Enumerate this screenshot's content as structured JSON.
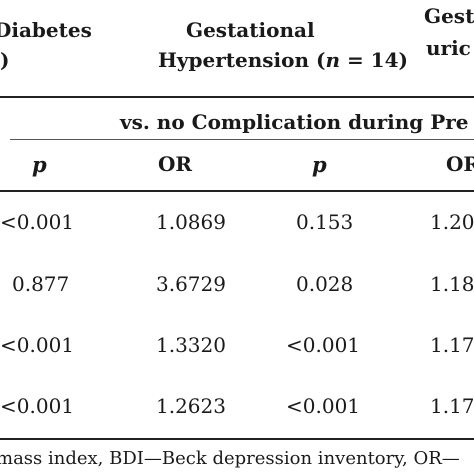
{
  "header": {
    "col1_line1": "Diabetes",
    "col1_line2": ")",
    "col2_line1": "Gestational",
    "col2_line2_prefix": "Hypertension (",
    "col2_line2_n": "n",
    "col2_line2_suffix": " = 14)",
    "col3_line1": "Gest",
    "col3_line2": "uric"
  },
  "comparison_label": "vs. no Complication during Pre",
  "subheaders": {
    "p1": "p",
    "or": "OR",
    "p2": "p",
    "or2": "OR"
  },
  "rows": [
    {
      "p1": "<0.001",
      "or": "1.0869",
      "p2": "0.153",
      "or2": "1.20"
    },
    {
      "p1": "0.877",
      "or": "3.6729",
      "p2": "0.028",
      "or2": "1.18"
    },
    {
      "p1": "<0.001",
      "or": "1.3320",
      "p2": "<0.001",
      "or2": "1.17"
    },
    {
      "p1": "<0.001",
      "or": "1.2623",
      "p2": "<0.001",
      "or2": "1.17"
    }
  ],
  "footnote": "mass index, BDI—Beck depression inventory, OR—"
}
